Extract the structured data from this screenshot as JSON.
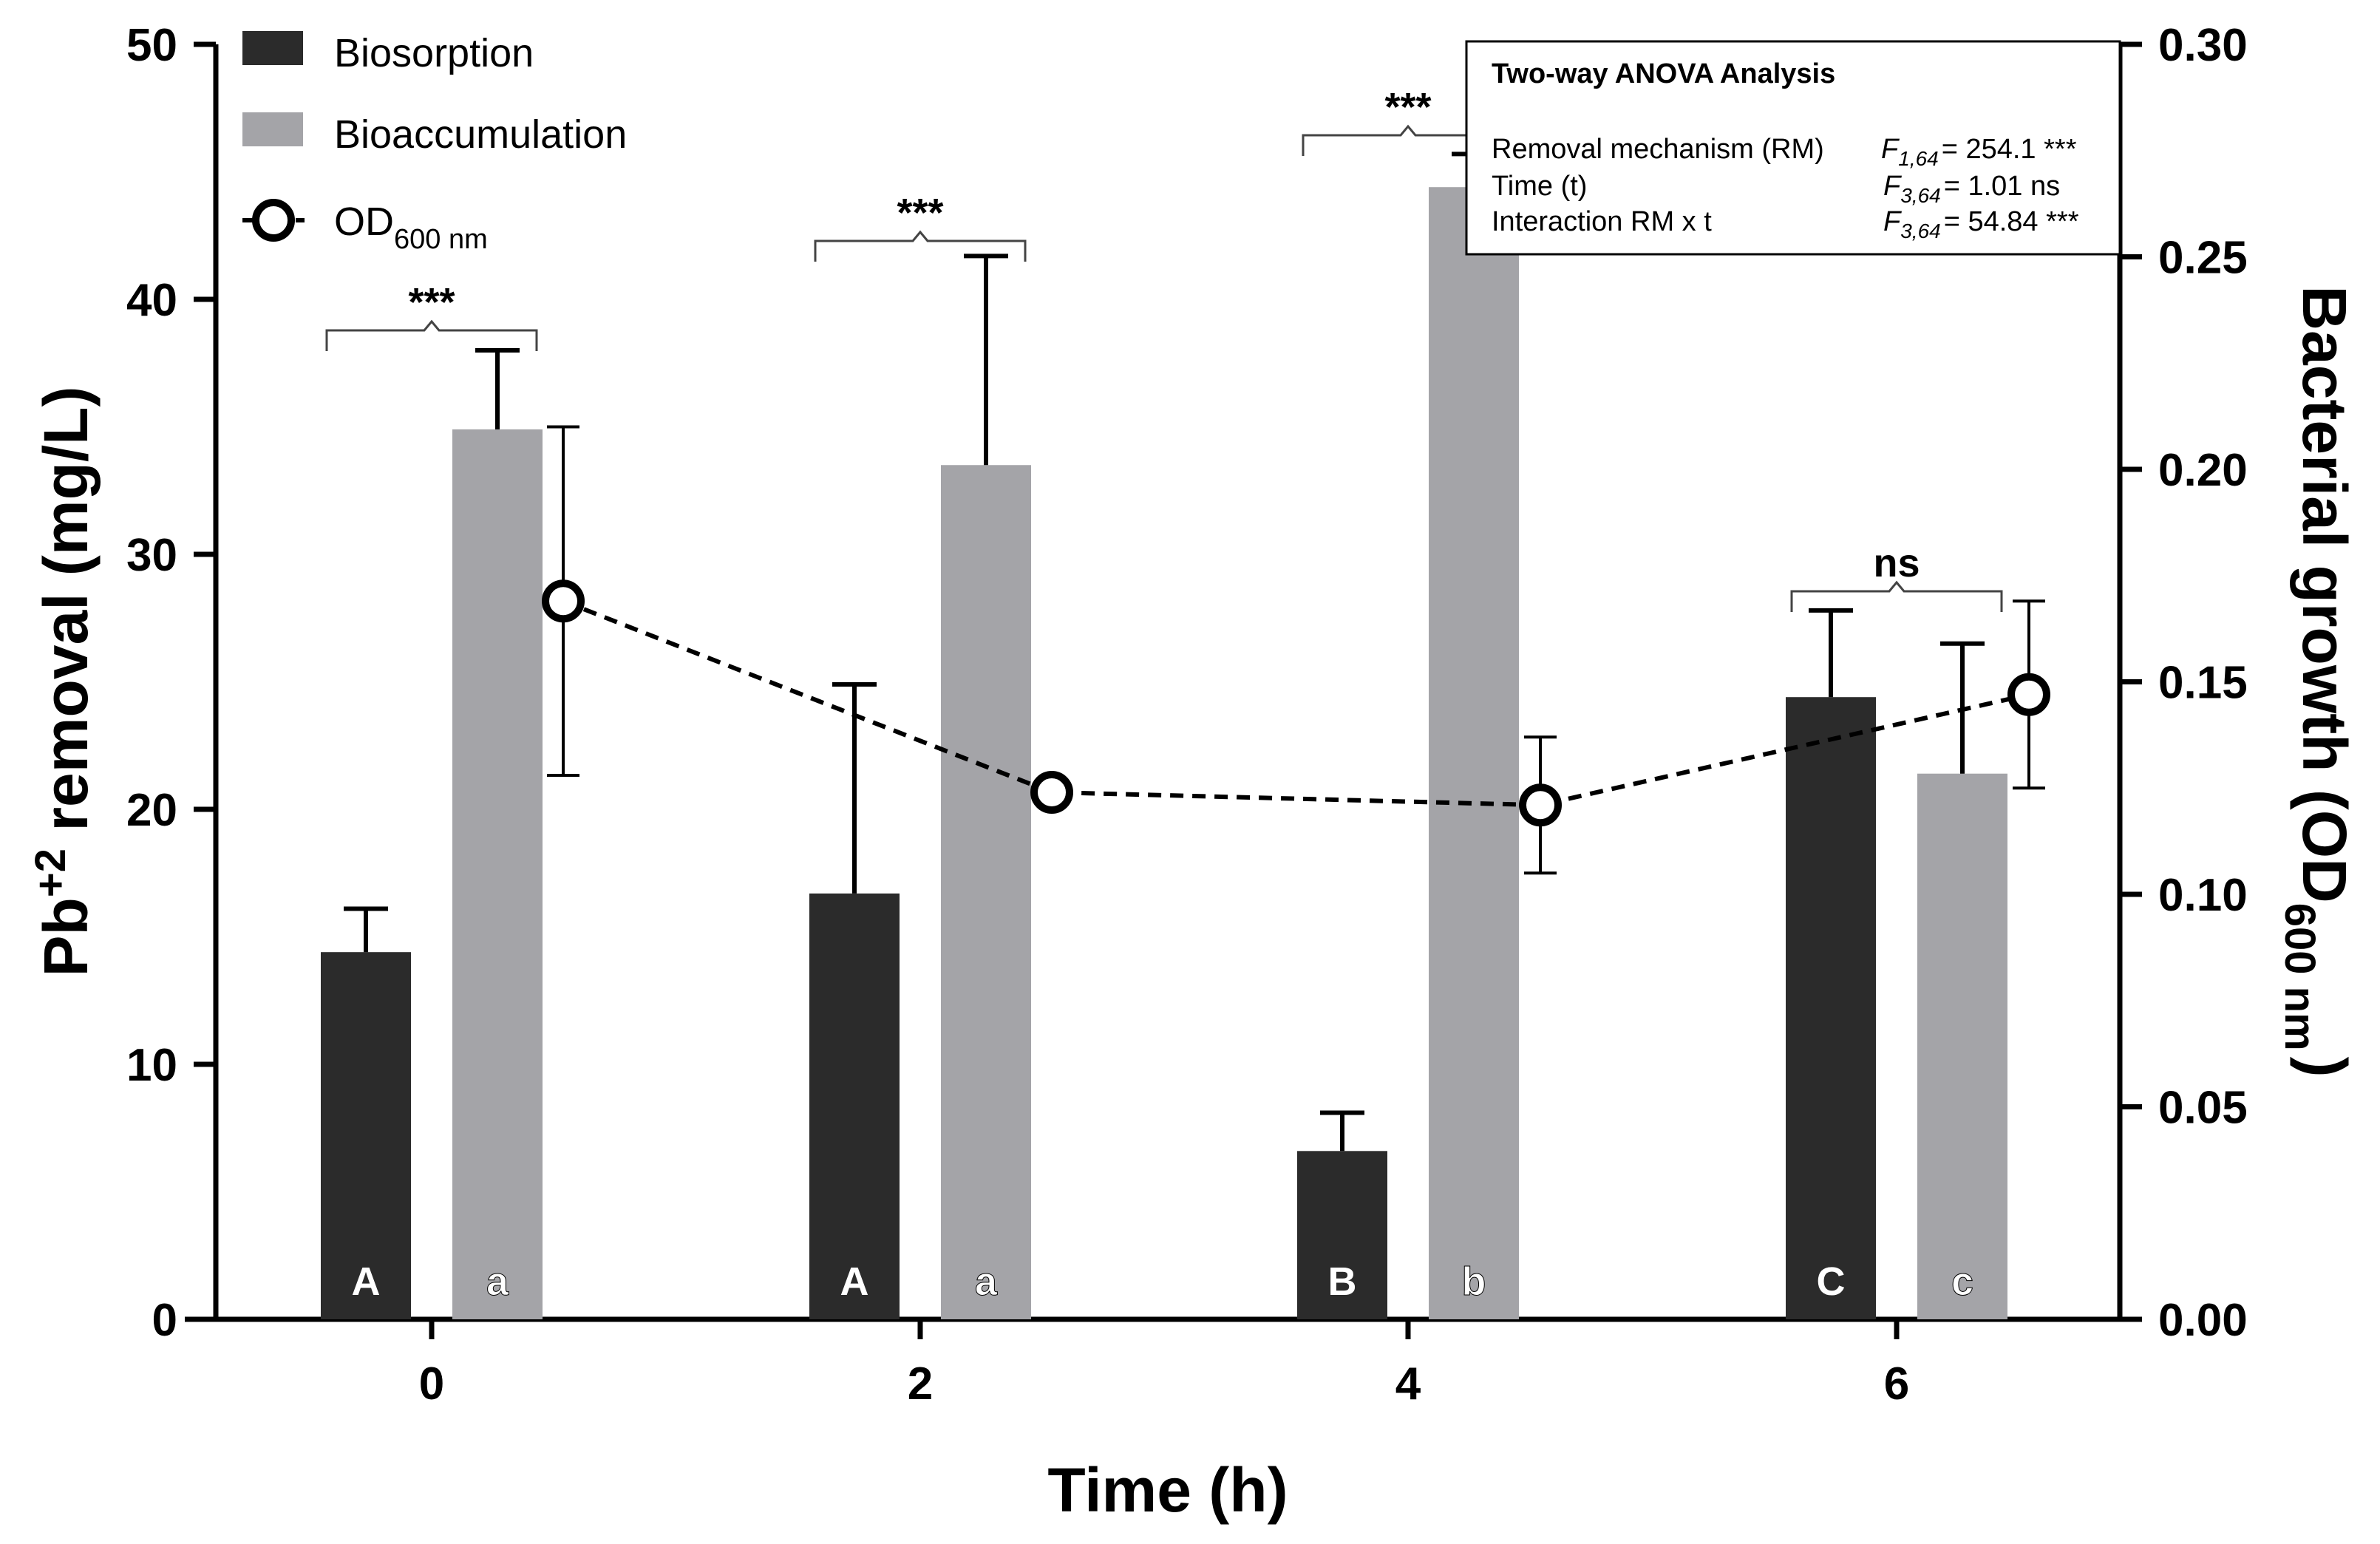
{
  "chart_data": {
    "type": "bar",
    "x_label": "Time (h)",
    "categories": [
      "0",
      "2",
      "4",
      "6"
    ],
    "left_axis": {
      "label_base": "Pb",
      "label_sup": "+2",
      "label_rest": " removal (mg/L)",
      "range": [
        0,
        50
      ],
      "ticks": [
        "0",
        "10",
        "20",
        "30",
        "40",
        "50"
      ]
    },
    "right_axis": {
      "label_main": "Bacterial growth (OD",
      "label_sub": "600 nm",
      "label_close": ")",
      "range": [
        0,
        0.3
      ],
      "ticks": [
        "0.00",
        "0.05",
        "0.10",
        "0.15",
        "0.20",
        "0.25",
        "0.30"
      ]
    },
    "series": [
      {
        "name": "Biosorption",
        "axis": "left",
        "color": "#2b2b2b",
        "values": [
          14.4,
          16.7,
          6.6,
          24.4
        ],
        "errors": [
          1.7,
          8.2,
          1.5,
          3.4
        ],
        "letters": [
          "A",
          "A",
          "B",
          "C"
        ]
      },
      {
        "name": "Bioaccumulation",
        "axis": "left",
        "color": "#a4a4a8",
        "values": [
          34.9,
          33.5,
          44.4,
          21.4
        ],
        "errors": [
          3.1,
          8.2,
          1.3,
          5.1
        ],
        "letters": [
          "a",
          "a",
          "b",
          "c"
        ]
      },
      {
        "name_main": "OD",
        "name_sub": "600 nm",
        "axis": "right",
        "type": "line",
        "values": [
          0.169,
          0.124,
          0.121,
          0.147
        ],
        "errors": [
          0.041,
          0.0,
          0.016,
          0.022
        ]
      }
    ],
    "significance": [
      "***",
      "***",
      "***",
      "ns"
    ],
    "anova": {
      "title": "Two-way ANOVA Analysis",
      "rows": [
        {
          "label": "Removal mechanism (RM)",
          "stat": "F",
          "df": "1,64",
          "value": "= 254.1 ***"
        },
        {
          "label": "Time (t)",
          "stat": "F",
          "df": "3,64",
          "value": "= 1.01 ns"
        },
        {
          "label": "Interaction RM x t",
          "stat": "F",
          "df": "3,64",
          "value": "= 54.84 ***"
        }
      ]
    }
  }
}
